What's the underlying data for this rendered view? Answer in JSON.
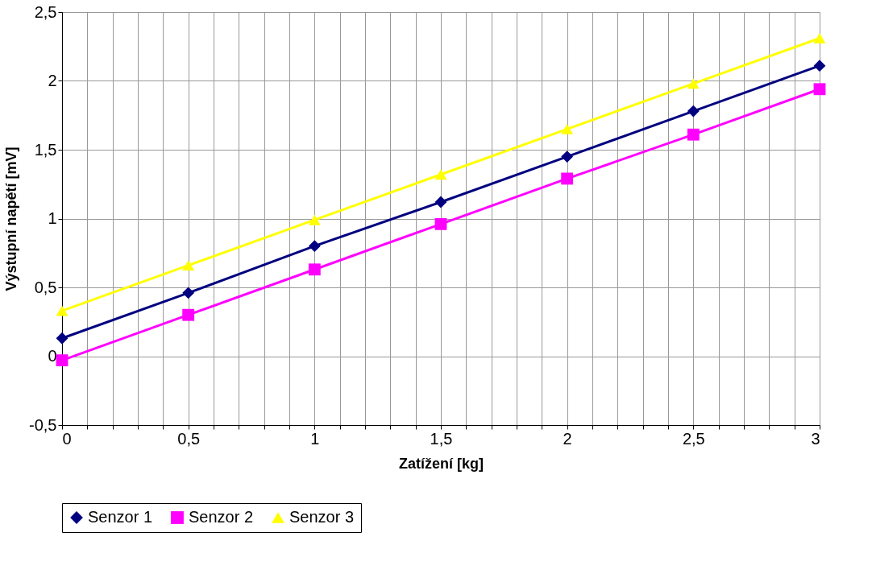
{
  "chart_data": {
    "type": "line",
    "xlabel": "Zatížení [kg]",
    "ylabel": "Výstupní napětí [mV]",
    "x": [
      0,
      0.5,
      1,
      1.5,
      2,
      2.5,
      3
    ],
    "series": [
      {
        "name": "Senzor 1",
        "color": "#000080",
        "marker": "diamond",
        "values": [
          0.13,
          0.46,
          0.8,
          1.12,
          1.45,
          1.78,
          2.11
        ]
      },
      {
        "name": "Senzor 2",
        "color": "#ff00ff",
        "marker": "square",
        "values": [
          -0.03,
          0.3,
          0.63,
          0.96,
          1.29,
          1.61,
          1.94
        ]
      },
      {
        "name": "Senzor 3",
        "color": "#ffff00",
        "marker": "triangle",
        "values": [
          0.33,
          0.66,
          0.99,
          1.32,
          1.65,
          1.98,
          2.31
        ]
      }
    ],
    "xlim": [
      0,
      3
    ],
    "ylim": [
      -0.5,
      2.5
    ],
    "xticks": [
      0,
      {
        "value": 0.1,
        "label": null
      },
      {
        "value": 0.2,
        "label": null
      },
      {
        "value": 0.3,
        "label": null
      },
      {
        "value": 0.4,
        "label": null
      },
      {
        "value": 0.5,
        "label": "0,5"
      },
      {
        "value": 0.6,
        "label": null
      },
      {
        "value": 0.7,
        "label": null
      },
      {
        "value": 0.8,
        "label": null
      },
      {
        "value": 0.9,
        "label": null
      },
      1,
      {
        "value": 1.1,
        "label": null
      },
      {
        "value": 1.2,
        "label": null
      },
      {
        "value": 1.3,
        "label": null
      },
      {
        "value": 1.4,
        "label": null
      },
      {
        "value": 1.5,
        "label": "1,5"
      },
      {
        "value": 1.6,
        "label": null
      },
      {
        "value": 1.7,
        "label": null
      },
      {
        "value": 1.8,
        "label": null
      },
      {
        "value": 1.9,
        "label": null
      },
      2,
      {
        "value": 2.1,
        "label": null
      },
      {
        "value": 2.2,
        "label": null
      },
      {
        "value": 2.3,
        "label": null
      },
      {
        "value": 2.4,
        "label": null
      },
      {
        "value": 2.5,
        "label": "2,5"
      },
      {
        "value": 2.6,
        "label": null
      },
      {
        "value": 2.7,
        "label": null
      },
      {
        "value": 2.8,
        "label": null
      },
      {
        "value": 2.9,
        "label": null
      },
      3
    ],
    "yticks": [
      {
        "value": -0.5,
        "label": "-0,5"
      },
      0,
      {
        "value": 0.5,
        "label": "0,5"
      },
      1,
      {
        "value": 1.5,
        "label": "1,5"
      },
      2,
      {
        "value": 2.5,
        "label": "2,5"
      }
    ],
    "grid": true,
    "legend": "bottom",
    "line_style": "solid"
  }
}
